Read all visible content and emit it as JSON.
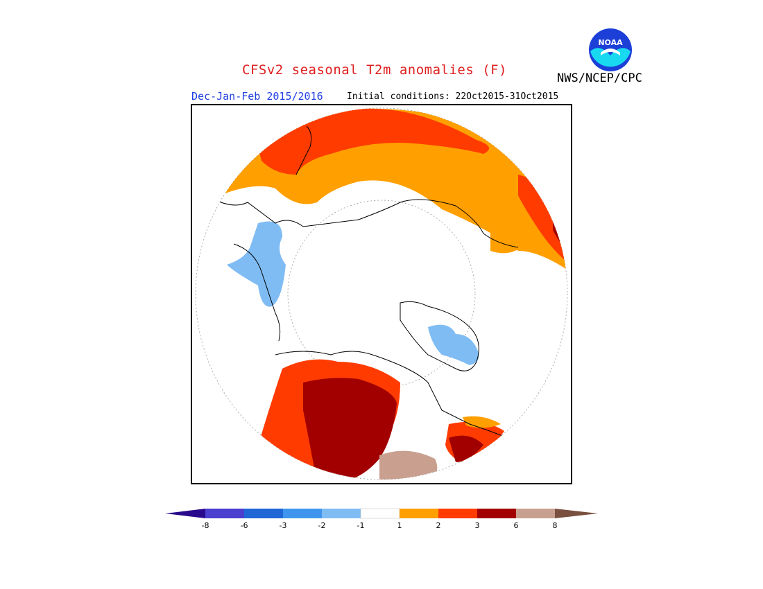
{
  "title": "CFSv2 seasonal T2m anomalies (F)",
  "season": "Dec-Jan-Feb 2015/2016",
  "initial_conditions": "Initial conditions: 22Oct2015-31Oct2015",
  "agency": "NWS/NCEP/CPC",
  "logo_text": "NOAA",
  "colorbar": {
    "labels": [
      "-8",
      "-6",
      "-3",
      "-2",
      "-1",
      "1",
      "2",
      "3",
      "6",
      "8"
    ],
    "colors": [
      "#2a0a8c",
      "#4a3fcf",
      "#1f66d6",
      "#3f95ee",
      "#7fbcf3",
      "#ffffff",
      "#ff9f00",
      "#ff3b00",
      "#a20000",
      "#c9a090",
      "#7a5040"
    ]
  },
  "map_colors": {
    "warm1": "#ff9f00",
    "warm2": "#ff3b00",
    "warm3": "#a20000",
    "warm4": "#c9a090",
    "cool1": "#7fbcf3",
    "cool2": "#3f95ee"
  }
}
